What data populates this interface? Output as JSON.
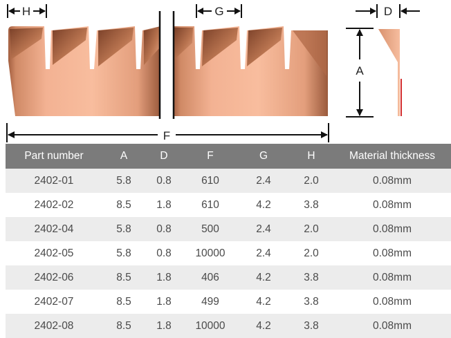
{
  "diagram": {
    "labels": {
      "h": "H",
      "g": "G",
      "d": "D",
      "a": "A",
      "f": "F"
    },
    "colors": {
      "copper_light": "#f4b896",
      "copper_dark": "#8c5238",
      "accent_line": "#d01818"
    }
  },
  "table": {
    "columns": [
      "Part number",
      "A",
      "D",
      "F",
      "G",
      "H",
      "Material thickness"
    ],
    "rows": [
      [
        "2402-01",
        "5.8",
        "0.8",
        "610",
        "2.4",
        "2.0",
        "0.08mm"
      ],
      [
        "2402-02",
        "8.5",
        "1.8",
        "610",
        "4.2",
        "3.8",
        "0.08mm"
      ],
      [
        "2402-04",
        "5.8",
        "0.8",
        "500",
        "2.4",
        "2.0",
        "0.08mm"
      ],
      [
        "2402-05",
        "5.8",
        "0.8",
        "10000",
        "2.4",
        "2.0",
        "0.08mm"
      ],
      [
        "2402-06",
        "8.5",
        "1.8",
        "406",
        "4.2",
        "3.8",
        "0.08mm"
      ],
      [
        "2402-07",
        "8.5",
        "1.8",
        "499",
        "4.2",
        "3.8",
        "0.08mm"
      ],
      [
        "2402-08",
        "8.5",
        "1.8",
        "10000",
        "4.2",
        "3.8",
        "0.08mm"
      ]
    ]
  }
}
